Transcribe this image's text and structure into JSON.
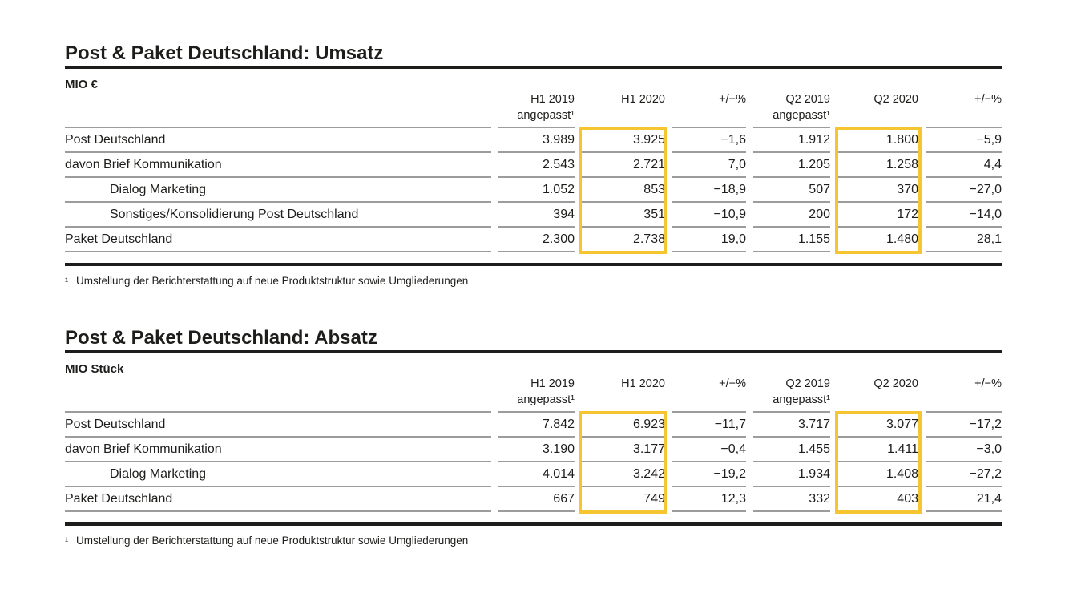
{
  "colors": {
    "text": "#1d1d1b",
    "rule_black": "#1d1d1b",
    "row_line_gray": "#9c9c9b",
    "highlight_yellow": "#f6c632"
  },
  "tables": [
    {
      "title": "Post & Paket Deutschland: Umsatz",
      "unit": "MIO €",
      "columns": [
        {
          "label": "H1 2019",
          "sub": "angepasst¹"
        },
        {
          "label": "H1 2020",
          "sub": ""
        },
        {
          "label": "+/−%",
          "sub": ""
        },
        {
          "label": "Q2 2019",
          "sub": "angepasst¹"
        },
        {
          "label": "Q2 2020",
          "sub": ""
        },
        {
          "label": "+/−%",
          "sub": ""
        }
      ],
      "highlight_columns": [
        1,
        4
      ],
      "rows": [
        {
          "label": "Post Deutschland",
          "indent": false,
          "values": [
            "3.989",
            "3.925",
            "−1,6",
            "1.912",
            "1.800",
            "−5,9"
          ]
        },
        {
          "label": "davon Brief Kommunikation",
          "indent": false,
          "values": [
            "2.543",
            "2.721",
            "7,0",
            "1.205",
            "1.258",
            "4,4"
          ]
        },
        {
          "label": "Dialog Marketing",
          "indent": true,
          "values": [
            "1.052",
            "853",
            "−18,9",
            "507",
            "370",
            "−27,0"
          ]
        },
        {
          "label": "Sonstiges/Konsolidierung Post Deutschland",
          "indent": true,
          "values": [
            "394",
            "351",
            "−10,9",
            "200",
            "172",
            "−14,0"
          ]
        },
        {
          "label": "Paket Deutschland",
          "indent": false,
          "values": [
            "2.300",
            "2.738",
            "19,0",
            "1.155",
            "1.480",
            "28,1"
          ]
        }
      ],
      "footnote_marker": "¹",
      "footnote": "Umstellung der Berichterstattung auf neue Produktstruktur sowie Umgliederungen"
    },
    {
      "title": "Post & Paket Deutschland: Absatz",
      "unit": "MIO Stück",
      "columns": [
        {
          "label": "H1 2019",
          "sub": "angepasst¹"
        },
        {
          "label": "H1 2020",
          "sub": ""
        },
        {
          "label": "+/−%",
          "sub": ""
        },
        {
          "label": "Q2 2019",
          "sub": "angepasst¹"
        },
        {
          "label": "Q2 2020",
          "sub": ""
        },
        {
          "label": "+/−%",
          "sub": ""
        }
      ],
      "highlight_columns": [
        1,
        4
      ],
      "rows": [
        {
          "label": "Post Deutschland",
          "indent": false,
          "values": [
            "7.842",
            "6.923",
            "−11,7",
            "3.717",
            "3.077",
            "−17,2"
          ]
        },
        {
          "label": "davon Brief Kommunikation",
          "indent": false,
          "values": [
            "3.190",
            "3.177",
            "−0,4",
            "1.455",
            "1.411",
            "−3,0"
          ]
        },
        {
          "label": "Dialog Marketing",
          "indent": true,
          "values": [
            "4.014",
            "3.242",
            "−19,2",
            "1.934",
            "1.408",
            "−27,2"
          ]
        },
        {
          "label": "Paket Deutschland",
          "indent": false,
          "values": [
            "667",
            "749",
            "12,3",
            "332",
            "403",
            "21,4"
          ]
        }
      ],
      "footnote_marker": "¹",
      "footnote": "Umstellung der Berichterstattung auf neue Produktstruktur sowie Umgliederungen"
    }
  ]
}
